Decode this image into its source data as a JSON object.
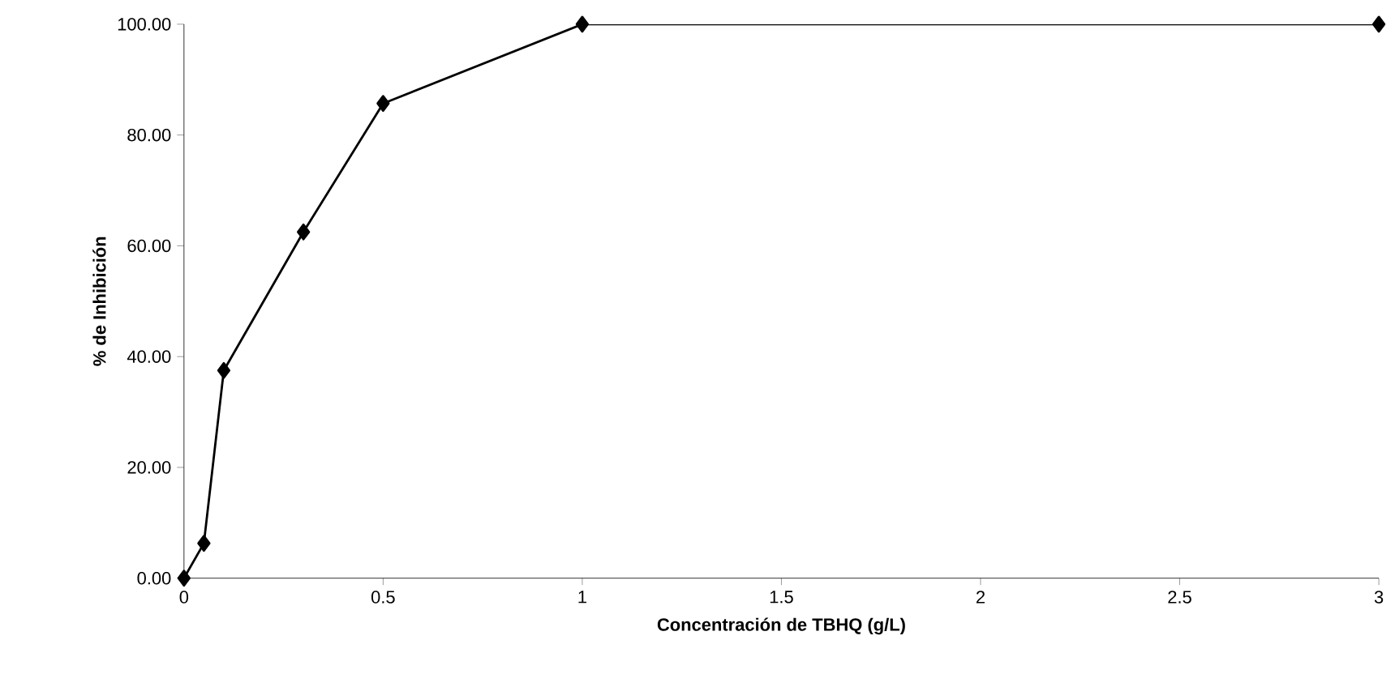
{
  "chart_data": {
    "type": "line",
    "xlabel": "Concentración de TBHQ (g/L)",
    "ylabel": "% de Inhibición",
    "x": [
      0,
      0.05,
      0.1,
      0.3,
      0.5,
      1,
      3
    ],
    "values": [
      0,
      6.3,
      37.5,
      62.5,
      85.7,
      100,
      100
    ],
    "color": "#000000",
    "marker": "diamond",
    "line_style": "solid",
    "grid": false,
    "xlim": [
      0,
      3
    ],
    "ylim": [
      0,
      100
    ],
    "xticks": [
      0,
      0.5,
      1,
      1.5,
      2,
      2.5,
      3
    ],
    "yticks": [
      {
        "value": 0,
        "label": "0.00"
      },
      {
        "value": 20,
        "label": "20.00"
      },
      {
        "value": 40,
        "label": "40.00"
      },
      {
        "value": 60,
        "label": "60.00"
      },
      {
        "value": 80,
        "label": "80.00"
      },
      {
        "value": 100,
        "label": "100.00"
      }
    ]
  }
}
